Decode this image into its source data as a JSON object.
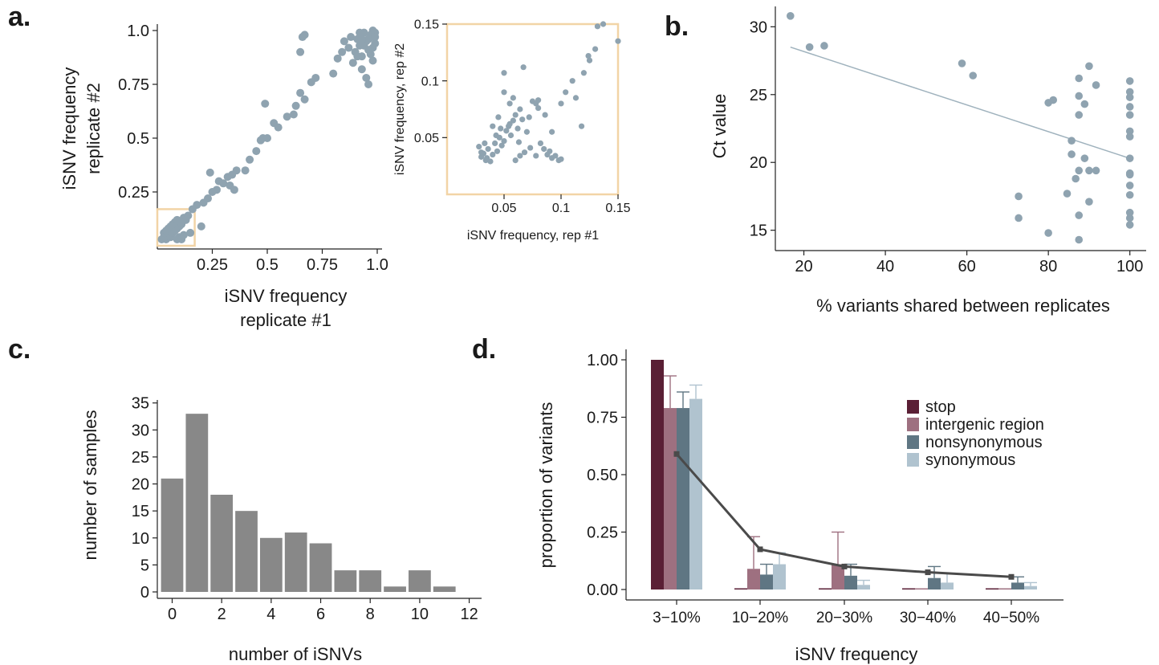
{
  "colors": {
    "scatter_point": "#8fa3b0",
    "inset_box": "#f2d4a6",
    "fit_line": "#9fb2bd",
    "histogram_bar": "#888888",
    "stop": "#5a1f35",
    "intergenic": "#9e7080",
    "nonsynonymous": "#5f7683",
    "synonymous": "#b0c3cf",
    "mean_line": "#4a4a4a"
  },
  "panel_labels": {
    "a": "a.",
    "b": "b.",
    "c": "c.",
    "d": "d."
  },
  "chart_data": [
    {
      "id": "a-main",
      "type": "scatter",
      "xlabel_lines": [
        "iSNV frequency",
        "replicate #1"
      ],
      "ylabel_lines": [
        "iSNV frequency",
        "replicate #2"
      ],
      "xlim": [
        0,
        1.0
      ],
      "ylim": [
        0,
        1.0
      ],
      "xticks": [
        0.25,
        0.5,
        0.75,
        1.0
      ],
      "xtick_labels": [
        "0.25",
        "0.5",
        "0.75",
        "1.0"
      ],
      "yticks": [
        0.25,
        0.5,
        0.75,
        1.0
      ],
      "ytick_labels": [
        "0.25",
        "0.5",
        "0.75",
        "1.0"
      ],
      "highlight_box": {
        "x": [
          0,
          0.17
        ],
        "y": [
          0,
          0.17
        ]
      },
      "points": [
        [
          0.02,
          0.03
        ],
        [
          0.03,
          0.04
        ],
        [
          0.04,
          0.03
        ],
        [
          0.05,
          0.05
        ],
        [
          0.03,
          0.06
        ],
        [
          0.06,
          0.04
        ],
        [
          0.04,
          0.07
        ],
        [
          0.07,
          0.06
        ],
        [
          0.05,
          0.08
        ],
        [
          0.08,
          0.07
        ],
        [
          0.06,
          0.09
        ],
        [
          0.09,
          0.08
        ],
        [
          0.07,
          0.1
        ],
        [
          0.1,
          0.09
        ],
        [
          0.08,
          0.11
        ],
        [
          0.11,
          0.1
        ],
        [
          0.09,
          0.12
        ],
        [
          0.12,
          0.13
        ],
        [
          0.13,
          0.12
        ],
        [
          0.14,
          0.14
        ],
        [
          0.1,
          0.04
        ],
        [
          0.12,
          0.05
        ],
        [
          0.15,
          0.06
        ],
        [
          0.09,
          0.03
        ],
        [
          0.11,
          0.03
        ],
        [
          0.2,
          0.09
        ],
        [
          0.16,
          0.17
        ],
        [
          0.18,
          0.19
        ],
        [
          0.21,
          0.2
        ],
        [
          0.23,
          0.22
        ],
        [
          0.25,
          0.25
        ],
        [
          0.27,
          0.26
        ],
        [
          0.24,
          0.34
        ],
        [
          0.28,
          0.3
        ],
        [
          0.3,
          0.29
        ],
        [
          0.32,
          0.32
        ],
        [
          0.34,
          0.33
        ],
        [
          0.36,
          0.35
        ],
        [
          0.33,
          0.28
        ],
        [
          0.35,
          0.26
        ],
        [
          0.4,
          0.35
        ],
        [
          0.42,
          0.4
        ],
        [
          0.45,
          0.44
        ],
        [
          0.47,
          0.49
        ],
        [
          0.48,
          0.5
        ],
        [
          0.5,
          0.5
        ],
        [
          0.49,
          0.66
        ],
        [
          0.53,
          0.57
        ],
        [
          0.55,
          0.55
        ],
        [
          0.59,
          0.6
        ],
        [
          0.62,
          0.61
        ],
        [
          0.63,
          0.65
        ],
        [
          0.65,
          0.71
        ],
        [
          0.67,
          0.68
        ],
        [
          0.7,
          0.76
        ],
        [
          0.72,
          0.78
        ],
        [
          0.67,
          0.98
        ],
        [
          0.66,
          0.97
        ],
        [
          0.65,
          0.9
        ],
        [
          0.8,
          0.8
        ],
        [
          0.82,
          0.87
        ],
        [
          0.84,
          0.9
        ],
        [
          0.85,
          0.95
        ],
        [
          0.87,
          0.92
        ],
        [
          0.88,
          0.97
        ],
        [
          0.89,
          0.85
        ],
        [
          0.9,
          0.9
        ],
        [
          0.91,
          0.96
        ],
        [
          0.92,
          0.93
        ],
        [
          0.93,
          0.88
        ],
        [
          0.94,
          0.99
        ],
        [
          0.95,
          0.95
        ],
        [
          0.96,
          0.91
        ],
        [
          0.97,
          0.97
        ],
        [
          0.98,
          1.0
        ],
        [
          0.99,
          0.94
        ],
        [
          0.93,
          0.82
        ],
        [
          0.95,
          0.78
        ],
        [
          0.96,
          0.75
        ],
        [
          0.97,
          0.98
        ],
        [
          0.98,
          0.92
        ],
        [
          0.99,
          0.99
        ],
        [
          0.92,
          0.99
        ],
        [
          0.94,
          0.93
        ],
        [
          0.96,
          0.96
        ],
        [
          0.97,
          0.89
        ],
        [
          0.98,
          0.86
        ],
        [
          0.99,
          0.97
        ],
        [
          0.91,
          0.88
        ],
        [
          0.93,
          0.96
        ]
      ]
    },
    {
      "id": "a-inset",
      "type": "scatter",
      "xlabel": "iSNV frequency, rep #1",
      "ylabel": "iSNV frequency, rep #2",
      "xlim": [
        0,
        0.15
      ],
      "ylim": [
        0,
        0.15
      ],
      "xticks": [
        0.05,
        0.1,
        0.15
      ],
      "xtick_labels": [
        "0.05",
        "0.1",
        "0.15"
      ],
      "yticks": [
        0.05,
        0.1,
        0.15
      ],
      "ytick_labels": [
        "0.05",
        "0.1",
        "0.15"
      ],
      "points": [
        [
          0.03,
          0.033
        ],
        [
          0.032,
          0.036
        ],
        [
          0.034,
          0.03
        ],
        [
          0.036,
          0.04
        ],
        [
          0.028,
          0.042
        ],
        [
          0.04,
          0.035
        ],
        [
          0.042,
          0.045
        ],
        [
          0.044,
          0.038
        ],
        [
          0.046,
          0.05
        ],
        [
          0.048,
          0.043
        ],
        [
          0.05,
          0.047
        ],
        [
          0.052,
          0.056
        ],
        [
          0.054,
          0.06
        ],
        [
          0.056,
          0.052
        ],
        [
          0.058,
          0.065
        ],
        [
          0.06,
          0.07
        ],
        [
          0.062,
          0.058
        ],
        [
          0.064,
          0.075
        ],
        [
          0.066,
          0.066
        ],
        [
          0.055,
          0.08
        ],
        [
          0.058,
          0.085
        ],
        [
          0.05,
          0.09
        ],
        [
          0.045,
          0.068
        ],
        [
          0.04,
          0.06
        ],
        [
          0.07,
          0.055
        ],
        [
          0.072,
          0.068
        ],
        [
          0.075,
          0.082
        ],
        [
          0.078,
          0.08
        ],
        [
          0.08,
          0.076
        ],
        [
          0.082,
          0.045
        ],
        [
          0.085,
          0.04
        ],
        [
          0.088,
          0.035
        ],
        [
          0.09,
          0.038
        ],
        [
          0.092,
          0.032
        ],
        [
          0.095,
          0.034
        ],
        [
          0.098,
          0.03
        ],
        [
          0.1,
          0.031
        ],
        [
          0.078,
          0.034
        ],
        [
          0.073,
          0.041
        ],
        [
          0.068,
          0.037
        ],
        [
          0.064,
          0.034
        ],
        [
          0.06,
          0.03
        ],
        [
          0.035,
          0.032
        ],
        [
          0.038,
          0.029
        ],
        [
          0.03,
          0.037
        ],
        [
          0.033,
          0.045
        ],
        [
          0.043,
          0.052
        ],
        [
          0.047,
          0.058
        ],
        [
          0.055,
          0.062
        ],
        [
          0.063,
          0.046
        ],
        [
          0.1,
          0.08
        ],
        [
          0.104,
          0.09
        ],
        [
          0.11,
          0.1
        ],
        [
          0.113,
          0.085
        ],
        [
          0.118,
          0.06
        ],
        [
          0.12,
          0.107
        ],
        [
          0.125,
          0.118
        ],
        [
          0.13,
          0.128
        ],
        [
          0.132,
          0.148
        ],
        [
          0.15,
          0.135
        ],
        [
          0.092,
          0.055
        ],
        [
          0.086,
          0.07
        ],
        [
          0.067,
          0.112
        ],
        [
          0.05,
          0.107
        ],
        [
          0.08,
          0.083
        ],
        [
          0.124,
          0.122
        ],
        [
          0.137,
          0.15
        ]
      ]
    },
    {
      "id": "b",
      "type": "scatter",
      "xlabel": "% variants shared between replicates",
      "ylabel": "Ct value",
      "xlim": [
        13,
        104
      ],
      "ylim": [
        13.5,
        31.5
      ],
      "xticks": [
        20,
        40,
        60,
        80,
        100
      ],
      "xtick_labels": [
        "20",
        "40",
        "60",
        "80",
        "100"
      ],
      "yticks": [
        15,
        20,
        25,
        30
      ],
      "ytick_labels": [
        "15",
        "20",
        "25",
        "30"
      ],
      "fit_line": {
        "x": [
          16.7,
          100
        ],
        "y": [
          28.5,
          20.3
        ]
      },
      "points": [
        [
          16.7,
          30.8
        ],
        [
          21.4,
          28.5
        ],
        [
          25,
          28.6
        ],
        [
          58.8,
          27.3
        ],
        [
          61.5,
          26.4
        ],
        [
          72.7,
          17.5
        ],
        [
          72.7,
          15.9
        ],
        [
          80,
          24.4
        ],
        [
          80,
          14.8
        ],
        [
          81.2,
          24.6
        ],
        [
          84.6,
          17.7
        ],
        [
          85.7,
          21.6
        ],
        [
          85.7,
          20.6
        ],
        [
          86.7,
          18.8
        ],
        [
          87.5,
          26.2
        ],
        [
          87.5,
          24.9
        ],
        [
          87.5,
          23.5
        ],
        [
          87.5,
          19.4
        ],
        [
          87.5,
          16.1
        ],
        [
          87.5,
          14.3
        ],
        [
          88.9,
          24.3
        ],
        [
          88.9,
          20.3
        ],
        [
          90,
          27.1
        ],
        [
          90,
          19.4
        ],
        [
          90,
          17.1
        ],
        [
          91.7,
          25.7
        ],
        [
          91.7,
          19.4
        ],
        [
          100,
          26
        ],
        [
          100,
          25.2
        ],
        [
          100,
          24.8
        ],
        [
          100,
          24.1
        ],
        [
          100,
          23.5
        ],
        [
          100,
          22.3
        ],
        [
          100,
          21.9
        ],
        [
          100,
          20.3
        ],
        [
          100,
          19.2
        ],
        [
          100,
          19.1
        ],
        [
          100,
          18.3
        ],
        [
          100,
          17.6
        ],
        [
          100,
          16.3
        ],
        [
          100,
          15.9
        ],
        [
          100,
          15.4
        ]
      ]
    },
    {
      "id": "c",
      "type": "bar",
      "xlabel": "number of iSNVs",
      "ylabel": "number of samples",
      "xlim": [
        -0.6,
        12.5
      ],
      "ylim": [
        0,
        36
      ],
      "xticks": [
        0,
        2,
        4,
        6,
        8,
        10,
        12
      ],
      "xtick_labels": [
        "0",
        "2",
        "4",
        "6",
        "8",
        "10",
        "12"
      ],
      "yticks": [
        0,
        5,
        10,
        15,
        20,
        25,
        30,
        35
      ],
      "ytick_labels": [
        "0",
        "5",
        "10",
        "15",
        "20",
        "25",
        "30",
        "35"
      ],
      "x": [
        0,
        1,
        2,
        3,
        4,
        5,
        6,
        7,
        8,
        9,
        10,
        11
      ],
      "values": [
        21,
        33,
        18,
        15,
        10,
        11,
        9,
        4,
        4,
        1,
        4,
        1
      ]
    },
    {
      "id": "d",
      "type": "bar",
      "xlabel": "iSNV frequency",
      "ylabel": "proportion of variants",
      "ylim": [
        0,
        1.05
      ],
      "yticks": [
        0,
        0.25,
        0.5,
        0.75,
        1.0
      ],
      "ytick_labels": [
        "0.00",
        "0.25",
        "0.50",
        "0.75",
        "1.00"
      ],
      "categories": [
        "3−10%",
        "10−20%",
        "20−30%",
        "30−40%",
        "40−50%"
      ],
      "series": [
        {
          "name": "stop",
          "color_key": "stop",
          "values": [
            1.0,
            0.0,
            0.0,
            0.0,
            0.0
          ],
          "err_hi": [
            null,
            null,
            null,
            null,
            null
          ]
        },
        {
          "name": "intergenic region",
          "color_key": "intergenic",
          "values": [
            0.79,
            0.09,
            0.11,
            0.0,
            0.0
          ],
          "err_hi": [
            0.93,
            0.23,
            0.25,
            null,
            null
          ]
        },
        {
          "name": "nonsynonymous",
          "color_key": "nonsynonymous",
          "values": [
            0.79,
            0.065,
            0.06,
            0.05,
            0.03
          ],
          "err_hi": [
            0.86,
            0.11,
            0.11,
            0.1,
            0.055
          ]
        },
        {
          "name": "synonymous",
          "color_key": "synonymous",
          "values": [
            0.83,
            0.11,
            0.02,
            0.03,
            0.015
          ],
          "err_hi": [
            0.89,
            0.16,
            0.04,
            0.07,
            0.03
          ]
        }
      ],
      "mean_line": [
        0.59,
        0.175,
        0.1,
        0.075,
        0.055
      ],
      "legend_position": "right"
    }
  ]
}
